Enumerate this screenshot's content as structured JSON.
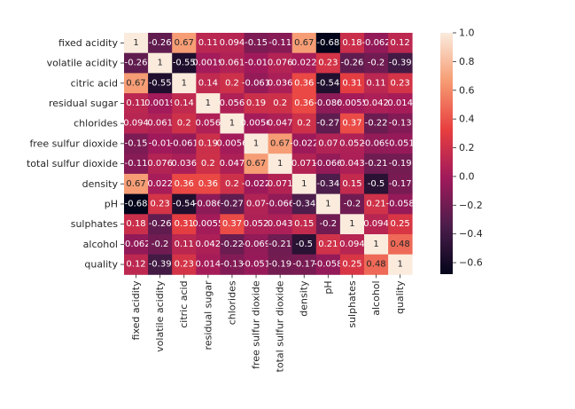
{
  "chart_data": {
    "type": "heatmap",
    "title": "",
    "xlabel": "",
    "ylabel": "",
    "variables": [
      "fixed acidity",
      "volatile acidity",
      "citric acid",
      "residual sugar",
      "chlorides",
      "free sulfur dioxide",
      "total sulfur dioxide",
      "density",
      "pH",
      "sulphates",
      "alcohol",
      "quality"
    ],
    "matrix": [
      [
        1,
        -0.26,
        0.67,
        0.11,
        0.094,
        -0.15,
        -0.11,
        0.67,
        -0.68,
        0.18,
        -0.062,
        0.12
      ],
      [
        -0.26,
        1,
        -0.55,
        0.0019,
        0.061,
        -0.01,
        0.076,
        0.022,
        0.23,
        -0.26,
        -0.2,
        -0.39
      ],
      [
        0.67,
        -0.55,
        1,
        0.14,
        0.2,
        -0.061,
        0.036,
        0.36,
        -0.54,
        0.31,
        0.11,
        0.23
      ],
      [
        0.11,
        0.0019,
        0.14,
        1,
        0.056,
        0.19,
        0.2,
        0.36,
        -0.086,
        0.0055,
        0.042,
        0.014
      ],
      [
        0.094,
        0.061,
        0.2,
        0.056,
        1,
        0.0056,
        0.047,
        0.2,
        -0.27,
        0.37,
        -0.22,
        -0.13
      ],
      [
        -0.15,
        -0.01,
        -0.061,
        0.19,
        0.0056,
        1,
        0.67,
        -0.022,
        0.07,
        0.052,
        -0.069,
        -0.051
      ],
      [
        -0.11,
        0.076,
        0.036,
        0.2,
        0.047,
        0.67,
        1,
        0.071,
        -0.066,
        0.043,
        -0.21,
        -0.19
      ],
      [
        0.67,
        0.022,
        0.36,
        0.36,
        0.2,
        -0.022,
        0.071,
        1,
        -0.34,
        0.15,
        -0.5,
        -0.17
      ],
      [
        -0.68,
        0.23,
        -0.54,
        -0.086,
        -0.27,
        0.07,
        -0.066,
        -0.34,
        1,
        -0.2,
        0.21,
        -0.058
      ],
      [
        0.18,
        -0.26,
        0.31,
        0.0055,
        0.37,
        0.052,
        0.043,
        0.15,
        -0.2,
        1,
        0.094,
        0.25
      ],
      [
        -0.062,
        -0.2,
        0.11,
        0.042,
        -0.22,
        -0.069,
        -0.21,
        -0.5,
        0.21,
        0.094,
        1,
        0.48
      ],
      [
        0.12,
        -0.39,
        0.23,
        0.014,
        -0.13,
        -0.051,
        -0.19,
        -0.17,
        -0.058,
        0.25,
        0.48,
        1
      ]
    ],
    "cell_text": [
      [
        "1",
        "-0.26",
        "0.67",
        "0.11",
        "0.094",
        "-0.15",
        "-0.11",
        "0.67",
        "-0.68",
        "0.18",
        "-0.062",
        "0.12"
      ],
      [
        "-0.26",
        "1",
        "-0.55",
        "0.0019",
        "0.061",
        "-0.01",
        "0.076",
        "0.022",
        "0.23",
        "-0.26",
        "-0.2",
        "-0.39"
      ],
      [
        "0.67",
        "-0.55",
        "1",
        "0.14",
        "0.2",
        "-0.061",
        "0.036",
        "0.36",
        "-0.54",
        "0.31",
        "0.11",
        "0.23"
      ],
      [
        "0.11",
        "0.0019",
        "0.14",
        "1",
        "0.056",
        "0.19",
        "0.2",
        "0.36",
        "-0.086",
        "0.0055",
        "0.042",
        "0.014"
      ],
      [
        "0.094",
        "0.061",
        "0.2",
        "0.056",
        "1",
        "0.0056",
        "0.047",
        "0.2",
        "-0.27",
        "0.37",
        "-0.22",
        "-0.13"
      ],
      [
        "-0.15",
        "-0.01",
        "-0.061",
        "0.19",
        "0.0056",
        "1",
        "0.67",
        "-0.022",
        "0.07",
        "0.052",
        "-0.069",
        "-0.051"
      ],
      [
        "-0.11",
        "0.076",
        "0.036",
        "0.2",
        "0.047",
        "0.67",
        "1",
        "0.071",
        "-0.066",
        "0.043",
        "-0.21",
        "-0.19"
      ],
      [
        "0.67",
        "0.022",
        "0.36",
        "0.36",
        "0.2",
        "-0.022",
        "0.071",
        "1",
        "-0.34",
        "0.15",
        "-0.5",
        "-0.17"
      ],
      [
        "-0.68",
        "0.23",
        "-0.54",
        "-0.086",
        "-0.27",
        "0.07",
        "-0.066",
        "-0.34",
        "1",
        "-0.2",
        "0.21",
        "-0.058"
      ],
      [
        "0.18",
        "-0.26",
        "0.31",
        "0.0055",
        "0.37",
        "0.052",
        "0.043",
        "0.15",
        "-0.2",
        "1",
        "0.094",
        "0.25"
      ],
      [
        "-0.062",
        "-0.2",
        "0.11",
        "0.042",
        "-0.22",
        "-0.069",
        "-0.21",
        "-0.5",
        "0.21",
        "0.094",
        "1",
        "0.48"
      ],
      [
        "0.12",
        "-0.39",
        "0.23",
        "0.014",
        "-0.13",
        "-0.051",
        "-0.19",
        "-0.17",
        "-0.058",
        "0.25",
        "0.48",
        "1"
      ]
    ],
    "color_range": [
      -0.68,
      1
    ],
    "colorbar": {
      "ticks": [
        1.0,
        0.8,
        0.6,
        0.4,
        0.2,
        0.0,
        -0.2,
        -0.4,
        -0.6
      ],
      "tick_labels": [
        "1.0",
        "0.8",
        "0.6",
        "0.4",
        "0.2",
        "0.0",
        "−0.2",
        "−0.4",
        "−0.6"
      ]
    },
    "colormap": "rocket",
    "colormap_stops": [
      "#03051a",
      "#4c1d4b",
      "#a11a5b",
      "#e83f3f",
      "#f69c73",
      "#faebdd"
    ],
    "annotated": true,
    "grid": false,
    "legend": "colorbar-right"
  }
}
